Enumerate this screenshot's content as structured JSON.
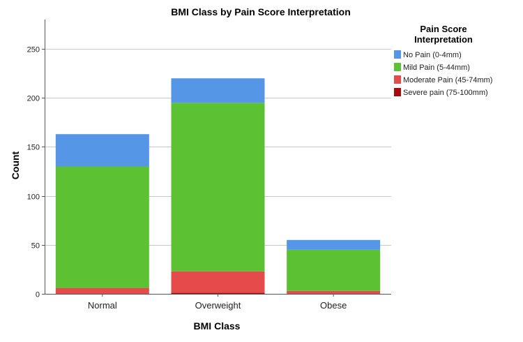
{
  "chart_data": {
    "type": "bar",
    "stacked": true,
    "title": "BMI Class by Pain Score Interpretation",
    "xlabel": "BMI Class",
    "ylabel": "Count",
    "ylim": [
      0,
      280
    ],
    "yticks": [
      0,
      50,
      100,
      150,
      200,
      250
    ],
    "grid": true,
    "categories": [
      "Normal",
      "Overweight",
      "Obese"
    ],
    "series": [
      {
        "name": "No Pain (0-4mm)",
        "color": "#5596e6",
        "values": [
          33,
          25,
          10
        ]
      },
      {
        "name": "Mild Pain (5-44mm)",
        "color": "#5dc134",
        "values": [
          124,
          172,
          42
        ]
      },
      {
        "name": "Moderate Pain (45-74mm)",
        "color": "#e64b4b",
        "values": [
          6,
          22,
          3
        ]
      },
      {
        "name": "Severe pain (75-100mm)",
        "color": "#a50d0d",
        "values": [
          0,
          1,
          0
        ]
      }
    ],
    "legend": {
      "title_lines": [
        "Pain Score",
        "Interpretation"
      ],
      "position": "right"
    }
  }
}
